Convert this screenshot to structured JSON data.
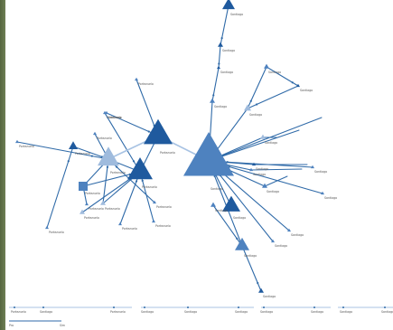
{
  "colors": {
    "dark": "#1f5a9e",
    "mid": "#4e82bf",
    "light": "#9fbbdd",
    "pale": "#c8d8ec",
    "edge": "#2f6aa8",
    "edge_light": "#a8c3e3"
  },
  "nodes": [
    {
      "id": "n0",
      "shape": "triangle",
      "size": 7,
      "color": "dark",
      "label": "Santiago"
    },
    {
      "id": "n1",
      "shape": "triangle",
      "size": 3,
      "color": "dark",
      "label": "Santiago"
    },
    {
      "id": "n2",
      "shape": "triangle",
      "size": 2,
      "color": "dark",
      "label": "Santiago"
    },
    {
      "id": "n3",
      "shape": "triangle",
      "size": 3,
      "color": "mid",
      "label": "Santiago"
    },
    {
      "id": "n4",
      "shape": "triangle",
      "size": 3,
      "color": "mid",
      "label": "Santiago"
    },
    {
      "id": "n5",
      "shape": "triangle",
      "size": 4,
      "color": "light",
      "label": "Santiago"
    },
    {
      "id": "n6",
      "shape": "triangle",
      "size": 2,
      "color": "dark",
      "label": "Santiago"
    },
    {
      "id": "n7",
      "shape": "triangle",
      "size": 3,
      "color": "light",
      "label": "Santiago"
    },
    {
      "id": "n8",
      "shape": "triangle",
      "size": 2,
      "color": "dark",
      "label": "Santiago"
    },
    {
      "id": "n9",
      "shape": "triangle",
      "size": 3,
      "color": "mid",
      "label": "Santiago"
    },
    {
      "id": "n10",
      "shape": "triangle",
      "size": 28,
      "color": "mid",
      "label": "Santiago"
    },
    {
      "id": "n11",
      "shape": "triangle",
      "size": 10,
      "color": "dark",
      "label": "Santiago"
    },
    {
      "id": "n12",
      "shape": "triangle",
      "size": 8,
      "color": "mid",
      "label": "Santiago"
    },
    {
      "id": "n13",
      "shape": "triangle",
      "size": 3,
      "color": "mid",
      "label": "Santiago"
    },
    {
      "id": "n14",
      "shape": "triangle",
      "size": 3,
      "color": "dark",
      "label": "Santiago"
    },
    {
      "id": "n15",
      "shape": "triangle",
      "size": 2,
      "color": "mid",
      "label": "Santiago"
    },
    {
      "id": "n16",
      "shape": "triangle",
      "size": 2,
      "color": "mid",
      "label": "Santiago"
    },
    {
      "id": "n17",
      "shape": "triangle",
      "size": 2,
      "color": "mid",
      "label": "Santiago"
    },
    {
      "id": "n18",
      "shape": "triangle",
      "size": 2,
      "color": "mid",
      "label": "Santiago"
    },
    {
      "id": "n19",
      "shape": "triangle",
      "size": 2,
      "color": "mid",
      "label": "Santiago"
    },
    {
      "id": "n20",
      "shape": "triangle",
      "size": 16,
      "color": "dark",
      "label": "Portezuelo"
    },
    {
      "id": "n21",
      "shape": "triangle",
      "size": 14,
      "color": "dark",
      "label": "Portezuelo"
    },
    {
      "id": "n22",
      "shape": "triangle",
      "size": 12,
      "color": "light",
      "label": "Portezuelo"
    },
    {
      "id": "n23",
      "shape": "square",
      "size": 5,
      "color": "mid",
      "label": "Portezuelo"
    },
    {
      "id": "n24",
      "shape": "triangle",
      "size": 5,
      "color": "dark",
      "label": "Portezuelo"
    },
    {
      "id": "n25",
      "shape": "triangle",
      "size": 3,
      "color": "light",
      "label": "Portezuelo"
    },
    {
      "id": "n26",
      "shape": "triangle",
      "size": 3,
      "color": "light",
      "label": "Portezuelo"
    },
    {
      "id": "n27",
      "shape": "triangle",
      "size": 2,
      "color": "mid",
      "label": "Portezuelo"
    },
    {
      "id": "n28",
      "shape": "triangle",
      "size": 2,
      "color": "mid",
      "label": "Portezuelo"
    },
    {
      "id": "n29",
      "shape": "triangle",
      "size": 2,
      "color": "mid",
      "label": "Portezuelo"
    },
    {
      "id": "n30",
      "shape": "triangle",
      "size": 2,
      "color": "mid",
      "label": "Portezuelo"
    },
    {
      "id": "n31",
      "shape": "triangle",
      "size": 2,
      "color": "mid",
      "label": "Portezuelo"
    },
    {
      "id": "n32",
      "shape": "triangle",
      "size": 2,
      "color": "mid",
      "label": "Portezuelo"
    },
    {
      "id": "n33",
      "shape": "triangle",
      "size": 2,
      "color": "mid",
      "label": "Portezuelo"
    },
    {
      "id": "n34",
      "shape": "triangle",
      "size": 2,
      "color": "mid",
      "label": "Portezuelo"
    },
    {
      "id": "n35",
      "shape": "triangle",
      "size": 2,
      "color": "mid",
      "label": "Portezuelo"
    },
    {
      "id": "n36",
      "shape": "triangle",
      "size": 2,
      "color": "mid",
      "label": "Santiago"
    }
  ],
  "edges": [
    [
      "n0",
      "n1"
    ],
    [
      "n1",
      "n2"
    ],
    [
      "n2",
      "n3"
    ],
    [
      "n3",
      "n10"
    ],
    [
      "n4",
      "n5"
    ],
    [
      "n5",
      "n10"
    ],
    [
      "n6",
      "n5"
    ],
    [
      "n4",
      "n6"
    ],
    [
      "n7",
      "n10"
    ],
    [
      "n8",
      "n10"
    ],
    [
      "n9",
      "n10"
    ],
    [
      "n11",
      "n10"
    ],
    [
      "n12",
      "n10"
    ],
    [
      "n13",
      "n12"
    ],
    [
      "n12",
      "n14"
    ],
    [
      "n15",
      "n10"
    ],
    [
      "n16",
      "n10"
    ],
    [
      "n17",
      "n10"
    ],
    [
      "n18",
      "n10"
    ],
    [
      "n19",
      "n10"
    ],
    [
      "n20",
      "n10"
    ],
    [
      "n21",
      "n20"
    ],
    [
      "n22",
      "n21"
    ],
    [
      "n23",
      "n22"
    ],
    [
      "n24",
      "n22"
    ],
    [
      "n25",
      "n21"
    ],
    [
      "n26",
      "n21"
    ],
    [
      "n27",
      "n21"
    ],
    [
      "n28",
      "n20"
    ],
    [
      "n29",
      "n22"
    ],
    [
      "n30",
      "n22"
    ],
    [
      "n31",
      "n24"
    ],
    [
      "n32",
      "n21"
    ],
    [
      "n33",
      "n23"
    ],
    [
      "n34",
      "n21"
    ],
    [
      "n35",
      "n22"
    ],
    [
      "n36",
      "n20"
    ],
    [
      "n22",
      "n20"
    ],
    [
      "n23",
      "n21"
    ],
    [
      "n25",
      "n22"
    ]
  ],
  "bottom_strip": {
    "labels": [
      "Portezuelo",
      "Santiago",
      "Portezuelo",
      "Santiago",
      "Santiago",
      "Santiago",
      "Santiago",
      "Santiago",
      "Santiago",
      "Santiago",
      "Santiago",
      "Santiago"
    ],
    "legend": [
      "Pro",
      "Sim"
    ]
  }
}
